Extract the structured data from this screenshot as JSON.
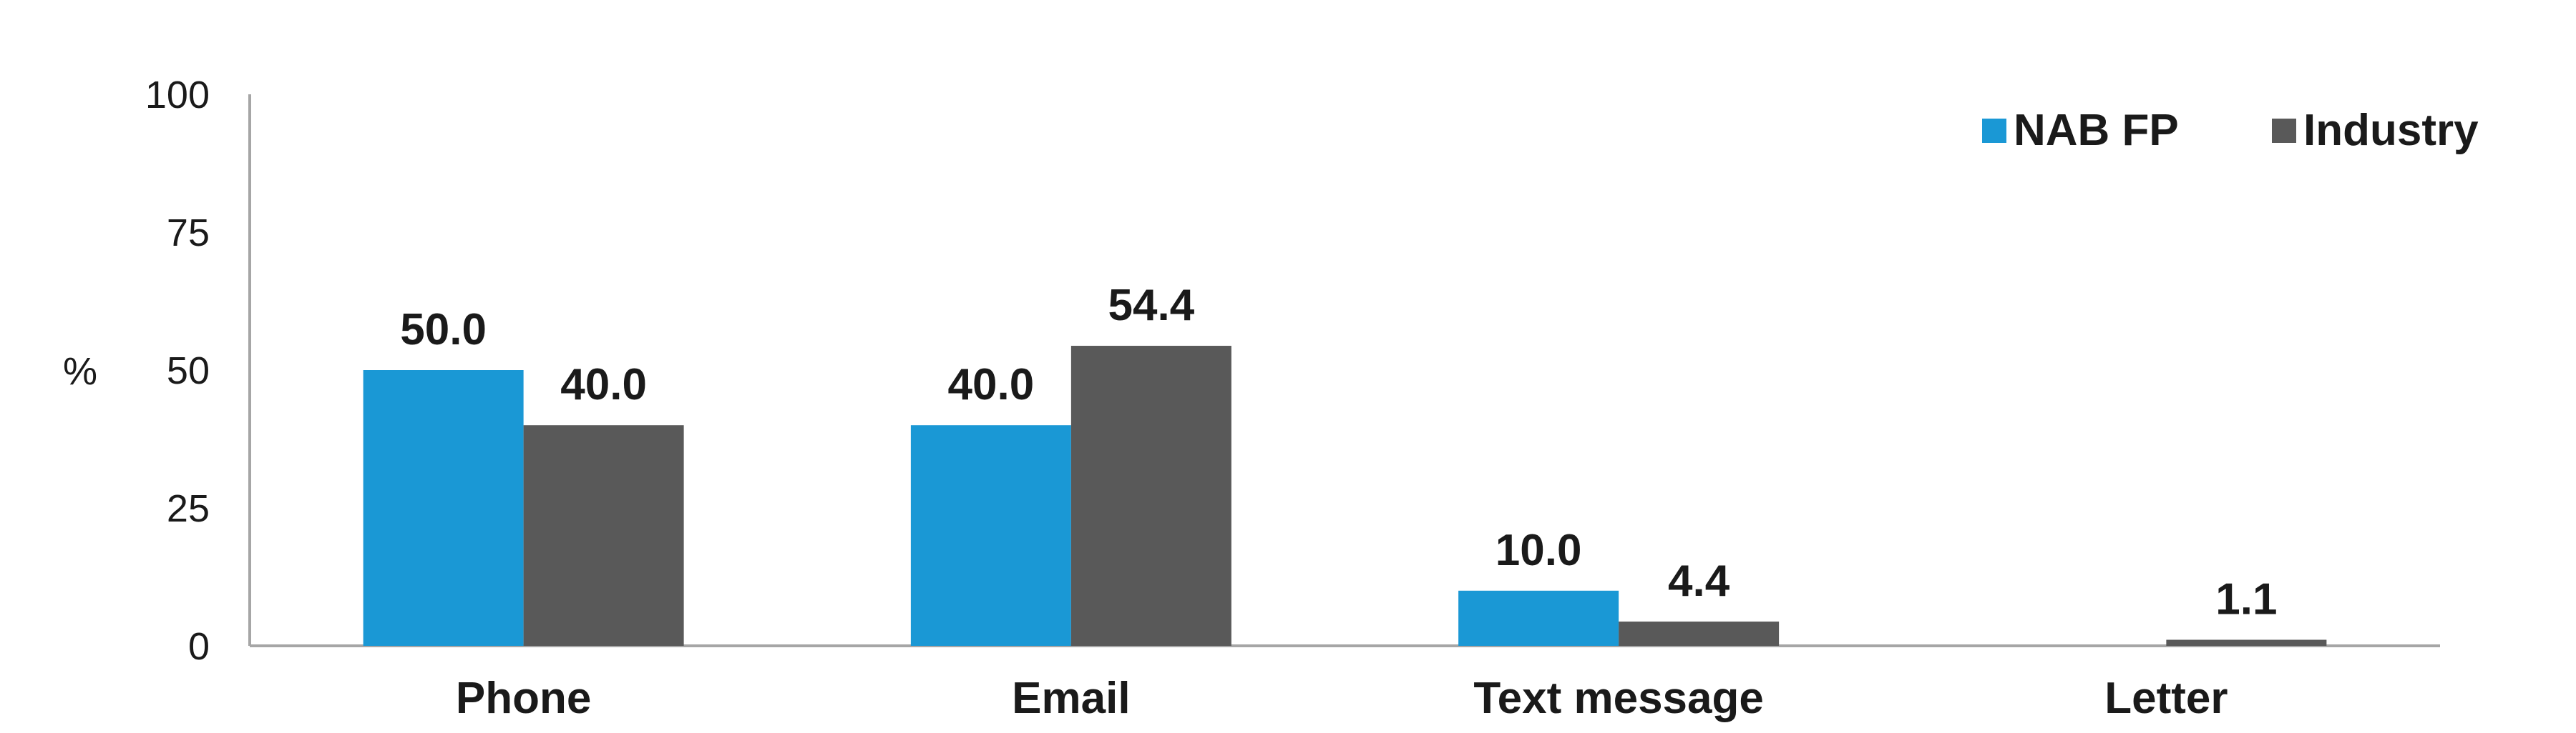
{
  "chart_data": {
    "type": "bar",
    "categories": [
      "Phone",
      "Email",
      "Text message",
      "Letter"
    ],
    "series": [
      {
        "name": "NAB FP",
        "color": "#1a98d5",
        "values": [
          50.0,
          40.0,
          10.0,
          null
        ],
        "labels": [
          "50.0",
          "40.0",
          "10.0",
          ""
        ]
      },
      {
        "name": "Industry",
        "color": "#595959",
        "values": [
          40.0,
          54.4,
          4.4,
          1.1
        ],
        "labels": [
          "40.0",
          "54.4",
          "4.4",
          "1.1"
        ]
      }
    ],
    "ylabel": "%",
    "ylim": [
      0,
      100
    ],
    "yticks": [
      "0",
      "25",
      "50",
      "75",
      "100"
    ],
    "grid": false,
    "legend_position": "top-right",
    "axis_color": "#a6a6a6"
  }
}
